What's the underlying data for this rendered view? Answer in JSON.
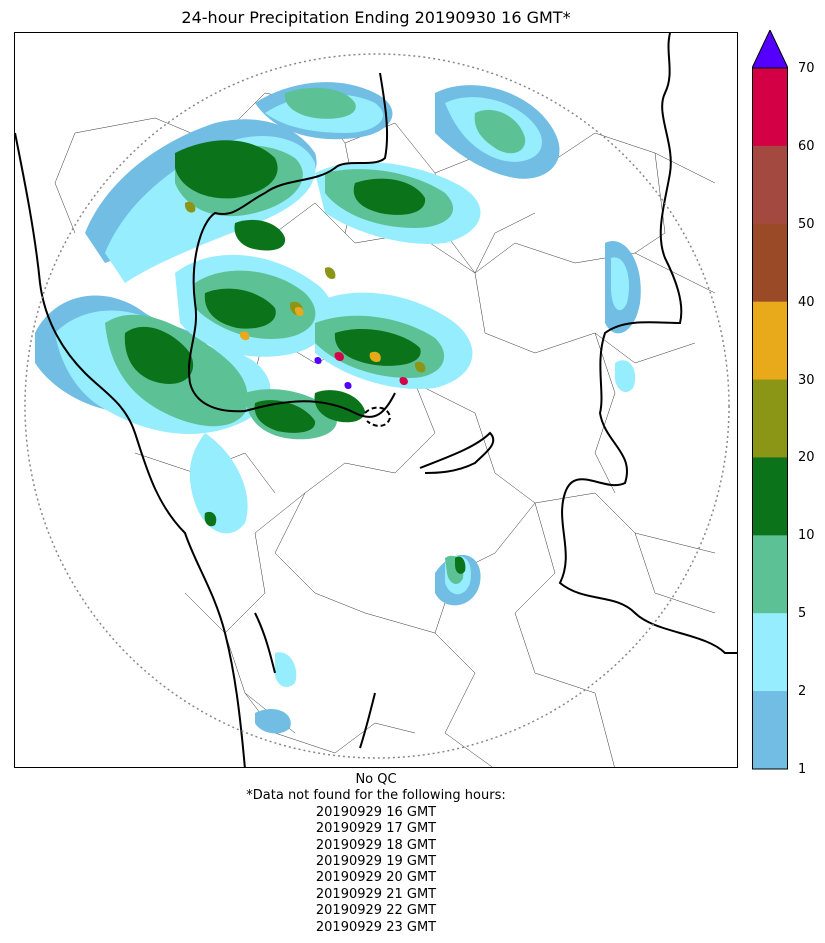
{
  "title": "24-hour Precipitation Ending 20190930 16 GMT*",
  "colorbar": {
    "labels": [
      "70",
      "60",
      "50",
      "40",
      "30",
      "20",
      "10",
      "5",
      "2",
      "1"
    ],
    "colors": [
      "#d40045",
      "#a4493f",
      "#9a4a26",
      "#e8a91a",
      "#8b9616",
      "#0b7319",
      "#5cc295",
      "#95edfd",
      "#71bde4"
    ],
    "extend_color": "#5300ff"
  },
  "footnote": {
    "qc": "No QC",
    "missing_header": "*Data not found for the following hours:",
    "hours": [
      "20190929 16 GMT",
      "20190929 17 GMT",
      "20190929 18 GMT",
      "20190929 19 GMT",
      "20190929 20 GMT",
      "20190929 21 GMT",
      "20190929 22 GMT",
      "20190929 23 GMT"
    ]
  },
  "legend_colors": {
    "range_ring": "#888888",
    "boundary": "#000000"
  }
}
